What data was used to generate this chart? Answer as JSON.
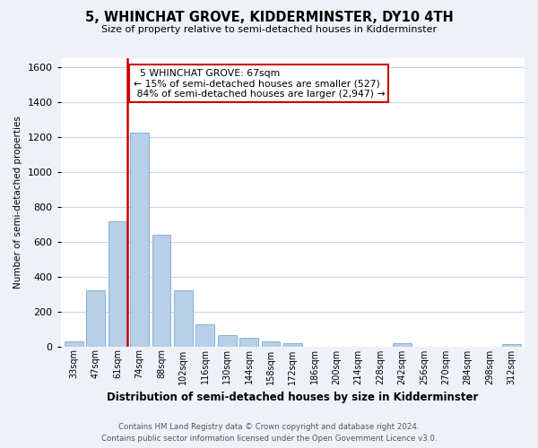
{
  "title": "5, WHINCHAT GROVE, KIDDERMINSTER, DY10 4TH",
  "subtitle": "Size of property relative to semi-detached houses in Kidderminster",
  "xlabel": "Distribution of semi-detached houses by size in Kidderminster",
  "ylabel": "Number of semi-detached properties",
  "bar_labels": [
    "33sqm",
    "47sqm",
    "61sqm",
    "74sqm",
    "88sqm",
    "102sqm",
    "116sqm",
    "130sqm",
    "144sqm",
    "158sqm",
    "172sqm",
    "186sqm",
    "200sqm",
    "214sqm",
    "228sqm",
    "242sqm",
    "256sqm",
    "270sqm",
    "284sqm",
    "298sqm",
    "312sqm"
  ],
  "bar_values": [
    28,
    320,
    715,
    1225,
    640,
    320,
    125,
    65,
    48,
    30,
    18,
    0,
    0,
    0,
    0,
    18,
    0,
    0,
    0,
    0,
    15
  ],
  "bar_color": "#b8cfe8",
  "bar_edge_color": "#7aaad0",
  "pct_smaller": 15,
  "count_smaller": 527,
  "pct_larger": 84,
  "count_larger": 2947,
  "vline_color": "#cc0000",
  "ylim": [
    0,
    1650
  ],
  "yticks": [
    0,
    200,
    400,
    600,
    800,
    1000,
    1200,
    1400,
    1600
  ],
  "annotation_box_color": "#ffffff",
  "annotation_box_edge": "#cc0000",
  "footer_line1": "Contains HM Land Registry data © Crown copyright and database right 2024.",
  "footer_line2": "Contains public sector information licensed under the Open Government Licence v3.0.",
  "bg_color": "#eef2f8",
  "plot_bg_color": "#ffffff",
  "grid_color": "#c8d4e8"
}
